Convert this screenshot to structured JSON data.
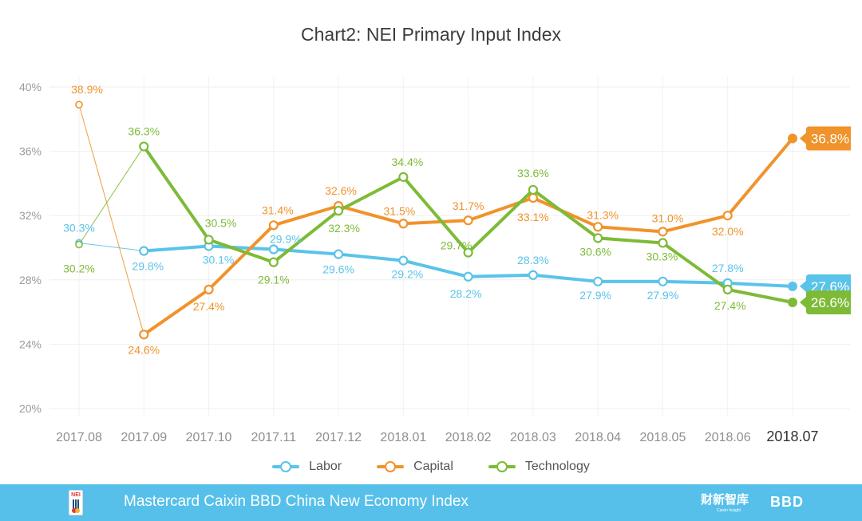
{
  "chart_data": {
    "type": "line",
    "title": "Chart2: NEI Primary Input Index",
    "categories": [
      "2017.08",
      "2017.09",
      "2017.10",
      "2017.11",
      "2017.12",
      "2018.01",
      "2018.02",
      "2018.03",
      "2018.04",
      "2018.05",
      "2018.06",
      "2018.07"
    ],
    "ylim": [
      20,
      40
    ],
    "yticks": [
      20,
      24,
      28,
      32,
      36,
      40
    ],
    "ytick_labels": [
      "20%",
      "24%",
      "28%",
      "32%",
      "36%",
      "40%"
    ],
    "grid": true,
    "series": [
      {
        "name": "Labor",
        "color": "#5ac3ea",
        "values": [
          30.3,
          29.8,
          30.1,
          29.9,
          29.6,
          29.2,
          28.2,
          28.3,
          27.9,
          27.9,
          27.8,
          27.6
        ],
        "labels": [
          "30.3%",
          "29.8%",
          "30.1%",
          "29.9%",
          "29.6%",
          "29.2%",
          "28.2%",
          "28.3%",
          "27.9%",
          "27.9%",
          "27.8%",
          "27.6%"
        ]
      },
      {
        "name": "Capital",
        "color": "#f0932b",
        "values": [
          38.9,
          24.6,
          27.4,
          31.4,
          32.6,
          31.5,
          31.7,
          33.1,
          31.3,
          31.0,
          32.0,
          36.8
        ],
        "labels": [
          "38.9%",
          "24.6%",
          "27.4%",
          "31.4%",
          "32.6%",
          "31.5%",
          "31.7%",
          "33.1%",
          "31.3%",
          "31.0%",
          "32.0%",
          "36.8%"
        ]
      },
      {
        "name": "Technology",
        "color": "#7dbb37",
        "values": [
          30.2,
          36.3,
          30.5,
          29.1,
          32.3,
          34.4,
          29.7,
          33.6,
          30.6,
          30.3,
          27.4,
          26.6
        ],
        "labels": [
          "30.2%",
          "36.3%",
          "30.5%",
          "29.1%",
          "32.3%",
          "34.4%",
          "29.7%",
          "33.6%",
          "30.6%",
          "30.3%",
          "27.4%",
          "26.6%"
        ]
      }
    ]
  },
  "legend": {
    "labor": "Labor",
    "capital": "Capital",
    "technology": "Technology"
  },
  "footer": {
    "logo_text": "NEI",
    "title": "Mastercard Caixin BBD China New Economy Index",
    "brand": "财新智库",
    "brand_sub": "Caixin Insight",
    "bbd": "BBD"
  }
}
